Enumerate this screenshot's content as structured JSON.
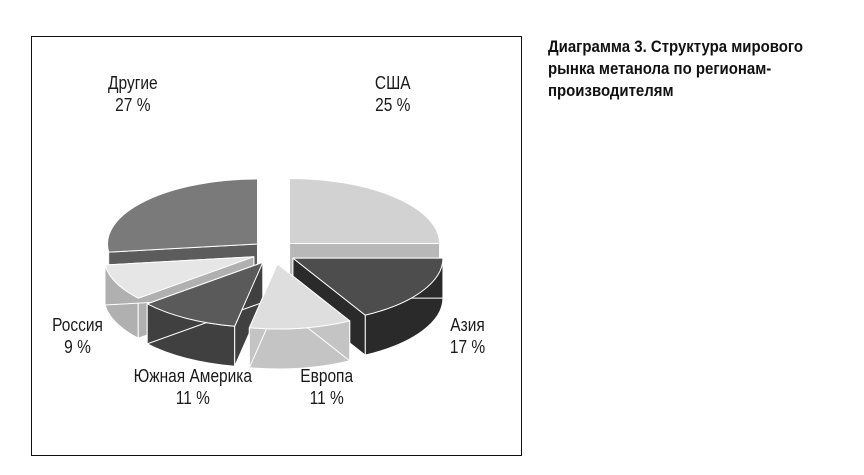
{
  "caption": "Диаграмма 3. Структура мирового рынка метанола по регионам-производителям",
  "chart_data": {
    "type": "pie",
    "title": "Диаграмма 3. Структура мирового рынка метанола по регионам-производителям",
    "unit": "%",
    "slices": [
      {
        "name": "США",
        "value": 25,
        "label": "25 %",
        "top_color": "#d2d2d2",
        "side_color": "#b8b8b8"
      },
      {
        "name": "Азия",
        "value": 17,
        "label": "17 %",
        "top_color": "#4d4d4d",
        "side_color": "#2a2a2a"
      },
      {
        "name": "Европа",
        "value": 11,
        "label": "11 %",
        "top_color": "#dedede",
        "side_color": "#c4c4c4"
      },
      {
        "name": "Южная Америка",
        "value": 11,
        "label": "11 %",
        "top_color": "#5a5a5a",
        "side_color": "#404040"
      },
      {
        "name": "Россия",
        "value": 9,
        "label": "9 %",
        "top_color": "#e6e6e6",
        "side_color": "#b0b0b0"
      },
      {
        "name": "Другие",
        "value": 27,
        "label": "27 %",
        "top_color": "#7a7a7a",
        "side_color": "#5c5c5c"
      }
    ]
  }
}
